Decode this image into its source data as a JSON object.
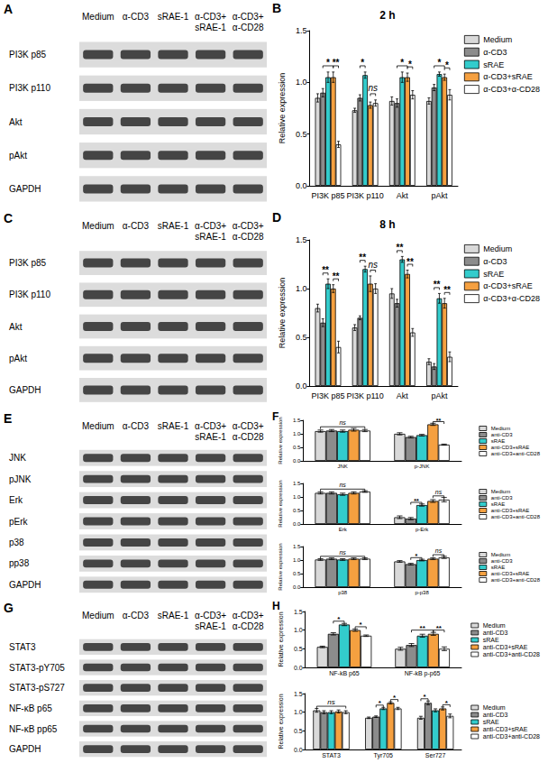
{
  "blots": [
    {
      "panel": "A",
      "lanes": [
        [
          "Medium"
        ],
        [
          "α-CD3"
        ],
        [
          "sRAE-1"
        ],
        [
          "α-CD3+",
          "sRAE-1"
        ],
        [
          "α-CD3+",
          "α-CD28"
        ]
      ],
      "rows": [
        "PI3K p85",
        "PI3K p110",
        "Akt",
        "pAkt",
        "GAPDH"
      ]
    },
    {
      "panel": "C",
      "lanes": [
        [
          "Medium"
        ],
        [
          "α-CD3"
        ],
        [
          "sRAE-1"
        ],
        [
          "α-CD3+",
          "sRAE-1"
        ],
        [
          "α-CD3+",
          "α-CD28"
        ]
      ],
      "rows": [
        "PI3K p85",
        "PI3K p110",
        "Akt",
        "pAkt",
        "GAPDH"
      ]
    },
    {
      "panel": "E",
      "lanes": [
        [
          "Medium"
        ],
        [
          "α-CD3"
        ],
        [
          "sRAE-1"
        ],
        [
          "α-CD3+",
          "sRAE-1"
        ],
        [
          "α-CD3+",
          "α-CD28"
        ]
      ],
      "rows": [
        "JNK",
        "pJNK",
        "Erk",
        "pErk",
        "p38",
        "pp38",
        "GAPDH"
      ]
    },
    {
      "panel": "G",
      "lanes": [
        [
          "Medium"
        ],
        [
          "α-CD3"
        ],
        [
          "sRAE-1"
        ],
        [
          "α-CD3+",
          "sRAE-1"
        ],
        [
          "α-CD3+",
          "α-CD28"
        ]
      ],
      "rows": [
        "STAT3",
        "STAT3-pY705",
        "STAT3-pS727",
        "NF-κB p65",
        "NF-κB pp65",
        "GAPDH"
      ]
    }
  ],
  "chart_data": [
    {
      "panel": "B",
      "type": "bar",
      "title": "2 h",
      "y_label": "Relative expression",
      "categories": [
        "PI3K p85",
        "PI3K p110",
        "Akt",
        "pAkt"
      ],
      "series": [
        {
          "name": "Medium",
          "color": "#d9d9d9",
          "values": [
            0.85,
            0.73,
            0.82,
            0.82
          ],
          "errors": [
            0.04,
            0.02,
            0.04,
            0.03
          ]
        },
        {
          "name": "α-CD3",
          "color": "#8c8c8c",
          "values": [
            0.9,
            0.85,
            0.8,
            0.95
          ],
          "errors": [
            0.04,
            0.03,
            0.04,
            0.03
          ]
        },
        {
          "name": "sRAE",
          "color": "#33cccc",
          "values": [
            1.05,
            1.07,
            1.05,
            1.08
          ],
          "errors": [
            0.05,
            0.03,
            0.05,
            0.02
          ]
        },
        {
          "name": "α-CD3+sRAE",
          "color": "#f5a040",
          "values": [
            1.05,
            0.78,
            1.05,
            1.05
          ],
          "errors": [
            0.05,
            0.03,
            0.04,
            0.03
          ]
        },
        {
          "name": "α-CD3+α-CD28",
          "color": "#ffffff",
          "values": [
            0.4,
            0.8,
            0.88,
            0.88
          ],
          "errors": [
            0.03,
            0.03,
            0.04,
            0.05
          ]
        }
      ],
      "ylim": [
        0,
        1.5
      ],
      "yticks": [
        {
          "value": 0,
          "label": "0.0"
        },
        0.5,
        {
          "value": 1,
          "label": "1.0"
        },
        1.5
      ],
      "grid": false,
      "legend": "right",
      "annotations": [
        {
          "category": "PI3K p85",
          "from": "α-CD3",
          "to": "α-CD3+sRAE",
          "text": "*"
        },
        {
          "category": "PI3K p85",
          "from": "α-CD3+sRAE",
          "to": "α-CD3+α-CD28",
          "text": "**"
        },
        {
          "category": "PI3K p110",
          "from": "α-CD3",
          "to": "sRAE",
          "text": "*"
        },
        {
          "category": "PI3K p110",
          "from": "α-CD3+sRAE",
          "to": "α-CD3+α-CD28",
          "text": "ns"
        },
        {
          "category": "Akt",
          "from": "α-CD3",
          "to": "α-CD3+sRAE",
          "text": "*"
        },
        {
          "category": "Akt",
          "from": "α-CD3+sRAE",
          "to": "α-CD3+α-CD28",
          "text": "*"
        },
        {
          "category": "pAkt",
          "from": "α-CD3",
          "to": "α-CD3+sRAE",
          "text": "*"
        },
        {
          "category": "pAkt",
          "from": "α-CD3+sRAE",
          "to": "α-CD3+α-CD28",
          "text": "*"
        }
      ]
    },
    {
      "panel": "D",
      "type": "bar",
      "title": "8 h",
      "y_label": "Relative expression",
      "categories": [
        "PI3K p85",
        "PI3K p110",
        "Akt",
        "pAkt"
      ],
      "series": [
        {
          "name": "Medium",
          "color": "#d9d9d9",
          "values": [
            0.8,
            0.6,
            0.95,
            0.25
          ],
          "errors": [
            0.04,
            0.03,
            0.05,
            0.03
          ]
        },
        {
          "name": "α-CD3",
          "color": "#8c8c8c",
          "values": [
            0.65,
            0.7,
            0.85,
            0.2
          ],
          "errors": [
            0.04,
            0.02,
            0.04,
            0.03
          ]
        },
        {
          "name": "sRAE",
          "color": "#33cccc",
          "values": [
            1.05,
            1.2,
            1.3,
            0.9
          ],
          "errors": [
            0.05,
            0.03,
            0.03,
            0.05
          ]
        },
        {
          "name": "α-CD3+sRAE",
          "color": "#f5a040",
          "values": [
            1.0,
            1.05,
            1.15,
            0.85
          ],
          "errors": [
            0.04,
            0.08,
            0.04,
            0.05
          ]
        },
        {
          "name": "α-CD3+α-CD28",
          "color": "#ffffff",
          "values": [
            0.4,
            1.0,
            0.55,
            0.3
          ],
          "errors": [
            0.06,
            0.05,
            0.04,
            0.05
          ]
        }
      ],
      "ylim": [
        0,
        1.5
      ],
      "yticks": [
        {
          "value": 0,
          "label": "0.0"
        },
        0.5,
        {
          "value": 1,
          "label": "1.0"
        },
        1.5
      ],
      "grid": false,
      "legend": "right",
      "annotations": [
        {
          "category": "PI3K p85",
          "from": "α-CD3",
          "to": "sRAE",
          "text": "**"
        },
        {
          "category": "PI3K p85",
          "from": "α-CD3+sRAE",
          "to": "α-CD3+α-CD28",
          "text": "**"
        },
        {
          "category": "PI3K p110",
          "from": "α-CD3",
          "to": "sRAE",
          "text": "**"
        },
        {
          "category": "PI3K p110",
          "from": "α-CD3+sRAE",
          "to": "α-CD3+α-CD28",
          "text": "ns"
        },
        {
          "category": "Akt",
          "from": "α-CD3",
          "to": "sRAE",
          "text": "**"
        },
        {
          "category": "Akt",
          "from": "α-CD3+sRAE",
          "to": "α-CD3+α-CD28",
          "text": "**"
        },
        {
          "category": "pAkt",
          "from": "α-CD3",
          "to": "sRAE",
          "text": "**"
        },
        {
          "category": "pAkt",
          "from": "α-CD3+sRAE",
          "to": "α-CD3+α-CD28",
          "text": "**"
        }
      ]
    },
    {
      "panel": "F",
      "type": "bar",
      "y_label": "Relative expression",
      "categories": [
        "JNK",
        "p-JNK"
      ],
      "series": [
        {
          "name": "Medium",
          "color": "#d9d9d9",
          "values": [
            1.1,
            1.0
          ],
          "errors": [
            0.04,
            0.04
          ]
        },
        {
          "name": "anti-CD3",
          "color": "#8c8c8c",
          "values": [
            1.12,
            0.88
          ],
          "errors": [
            0.04,
            0.03
          ]
        },
        {
          "name": "sRAE",
          "color": "#33cccc",
          "values": [
            1.1,
            0.95
          ],
          "errors": [
            0.04,
            0.03
          ]
        },
        {
          "name": "anti-CD3+sRAE",
          "color": "#f5a040",
          "values": [
            1.15,
            1.35
          ],
          "errors": [
            0.05,
            0.04
          ]
        },
        {
          "name": "anti-CD3+anti-CD28",
          "color": "#ffffff",
          "values": [
            1.12,
            0.6
          ],
          "errors": [
            0.04,
            0.02
          ]
        }
      ],
      "ylim": [
        0,
        1.5
      ],
      "yticks": [
        {
          "value": 0,
          "label": "0.0"
        },
        0.5,
        {
          "value": 1,
          "label": "1.0"
        },
        1.5
      ],
      "grid": false,
      "legend": "right",
      "annotations": [
        {
          "category": "JNK",
          "from": "Medium",
          "to": "anti-CD3+anti-CD28",
          "text": "ns"
        },
        {
          "category": "p-JNK",
          "from": "anti-CD3+sRAE",
          "to": "anti-CD3+anti-CD28",
          "text": "**"
        }
      ]
    },
    {
      "type": "bar",
      "y_label": "Relative expression",
      "categories": [
        "Erk",
        "p-Erk"
      ],
      "series": [
        {
          "name": "Medium",
          "color": "#d9d9d9",
          "values": [
            1.15,
            0.25
          ],
          "errors": [
            0.04,
            0.05
          ]
        },
        {
          "name": "anti-CD3",
          "color": "#8c8c8c",
          "values": [
            1.15,
            0.2
          ],
          "errors": [
            0.04,
            0.04
          ]
        },
        {
          "name": "sRAE",
          "color": "#33cccc",
          "values": [
            1.1,
            0.7
          ],
          "errors": [
            0.04,
            0.04
          ]
        },
        {
          "name": "anti-CD3+sRAE",
          "color": "#f5a040",
          "values": [
            1.15,
            0.85
          ],
          "errors": [
            0.04,
            0.05
          ]
        },
        {
          "name": "anti-CD3+anti-CD28",
          "color": "#ffffff",
          "values": [
            1.2,
            0.9
          ],
          "errors": [
            0.03,
            0.08
          ]
        }
      ],
      "ylim": [
        0,
        1.5
      ],
      "yticks": [
        {
          "value": 0,
          "label": "0.0"
        },
        0.5,
        {
          "value": 1,
          "label": "1.0"
        },
        1.5
      ],
      "grid": false,
      "legend": "right",
      "annotations": [
        {
          "category": "Erk",
          "from": "Medium",
          "to": "anti-CD3+anti-CD28",
          "text": "ns"
        },
        {
          "category": "p-Erk",
          "from": "anti-CD3",
          "to": "sRAE",
          "text": "**"
        },
        {
          "category": "p-Erk",
          "from": "anti-CD3+sRAE",
          "to": "anti-CD3+anti-CD28",
          "text": "ns"
        }
      ]
    },
    {
      "type": "bar",
      "y_label": "Relative expression",
      "categories": [
        "p38",
        "p-p38"
      ],
      "series": [
        {
          "name": "Medium",
          "color": "#d9d9d9",
          "values": [
            1.02,
            0.95
          ],
          "errors": [
            0.03,
            0.03
          ]
        },
        {
          "name": "anti-CD3",
          "color": "#8c8c8c",
          "values": [
            1.05,
            0.85
          ],
          "errors": [
            0.03,
            0.03
          ]
        },
        {
          "name": "sRAE",
          "color": "#33cccc",
          "values": [
            1.02,
            1.0
          ],
          "errors": [
            0.03,
            0.03
          ]
        },
        {
          "name": "anti-CD3+sRAE",
          "color": "#f5a040",
          "values": [
            1.05,
            1.05
          ],
          "errors": [
            0.03,
            0.03
          ]
        },
        {
          "name": "anti-CD3+anti-CD28",
          "color": "#ffffff",
          "values": [
            1.05,
            1.1
          ],
          "errors": [
            0.03,
            0.04
          ]
        }
      ],
      "ylim": [
        0,
        1.5
      ],
      "yticks": [
        {
          "value": 0,
          "label": "0.0"
        },
        0.5,
        {
          "value": 1,
          "label": "1.0"
        },
        1.5
      ],
      "grid": false,
      "legend": "right",
      "annotations": [
        {
          "category": "p38",
          "from": "Medium",
          "to": "anti-CD3+anti-CD28",
          "text": "ns"
        },
        {
          "category": "p-p38",
          "from": "anti-CD3",
          "to": "sRAE",
          "text": "*"
        },
        {
          "category": "p-p38",
          "from": "anti-CD3+sRAE",
          "to": "anti-CD3+anti-CD28",
          "text": "ns"
        }
      ]
    },
    {
      "panel": "H",
      "type": "bar",
      "y_label": "Relative expression",
      "categories": [
        "NF-kB p65",
        "NF-kB p-p65"
      ],
      "series": [
        {
          "name": "Medium",
          "color": "#d9d9d9",
          "values": [
            0.55,
            0.5
          ],
          "errors": [
            0.02,
            0.04
          ]
        },
        {
          "name": "anti-CD3",
          "color": "#8c8c8c",
          "values": [
            0.9,
            0.6
          ],
          "errors": [
            0.03,
            0.04
          ]
        },
        {
          "name": "sRAE",
          "color": "#33cccc",
          "values": [
            1.15,
            0.85
          ],
          "errors": [
            0.03,
            0.04
          ]
        },
        {
          "name": "anti-CD3+sRAE",
          "color": "#f5a040",
          "values": [
            1.0,
            0.9
          ],
          "errors": [
            0.03,
            0.04
          ]
        },
        {
          "name": "anti-CD3+anti-CD28",
          "color": "#ffffff",
          "values": [
            0.85,
            0.5
          ],
          "errors": [
            0.02,
            0.05
          ]
        }
      ],
      "ylim": [
        0,
        1.5
      ],
      "yticks": [
        {
          "value": 0,
          "label": "0.0"
        },
        0.5,
        {
          "value": 1,
          "label": "1.0"
        },
        1.5
      ],
      "grid": false,
      "legend": "right",
      "annotations": [
        {
          "category": "NF-kB p65",
          "from": "anti-CD3",
          "to": "sRAE",
          "text": "*"
        },
        {
          "category": "NF-kB p65",
          "from": "anti-CD3+sRAE",
          "to": "anti-CD3+anti-CD28",
          "text": "*"
        },
        {
          "category": "NF-kB p-p65",
          "from": "anti-CD3",
          "to": "anti-CD3+sRAE",
          "text": "**"
        },
        {
          "category": "NF-kB p-p65",
          "from": "anti-CD3+sRAE",
          "to": "anti-CD3+anti-CD28",
          "text": "**"
        }
      ]
    },
    {
      "type": "bar",
      "y_label": "Relative expression",
      "categories": [
        "STAT3",
        "Tyr705",
        "Ser727"
      ],
      "series": [
        {
          "name": "Medium",
          "color": "#d9d9d9",
          "values": [
            1.05,
            0.85,
            0.85
          ],
          "errors": [
            0.05,
            0.02,
            0.04
          ]
        },
        {
          "name": "anti-CD3",
          "color": "#8c8c8c",
          "values": [
            1.0,
            0.88,
            1.25
          ],
          "errors": [
            0.04,
            0.02,
            0.05
          ]
        },
        {
          "name": "sRAE",
          "color": "#33cccc",
          "values": [
            1.0,
            1.1,
            1.05
          ],
          "errors": [
            0.04,
            0.03,
            0.04
          ]
        },
        {
          "name": "anti-CD3+sRAE",
          "color": "#f5a040",
          "values": [
            1.02,
            1.25,
            1.1
          ],
          "errors": [
            0.04,
            0.03,
            0.04
          ]
        },
        {
          "name": "anti-CD3+anti-CD28",
          "color": "#ffffff",
          "values": [
            1.0,
            1.1,
            0.9
          ],
          "errors": [
            0.04,
            0.03,
            0.05
          ]
        }
      ],
      "ylim": [
        0,
        1.5
      ],
      "yticks": [
        {
          "value": 0,
          "label": "0.0"
        },
        0.5,
        {
          "value": 1,
          "label": "1.0"
        },
        1.5
      ],
      "grid": false,
      "legend": "right",
      "annotations": [
        {
          "category": "STAT3",
          "from": "Medium",
          "to": "anti-CD3+anti-CD28",
          "text": "ns"
        },
        {
          "category": "Tyr705",
          "from": "anti-CD3",
          "to": "sRAE",
          "text": "*"
        },
        {
          "category": "Tyr705",
          "from": "anti-CD3+sRAE",
          "to": "anti-CD3+anti-CD28",
          "text": "*"
        },
        {
          "category": "Ser727",
          "from": "Medium",
          "to": "anti-CD3",
          "text": "*"
        },
        {
          "category": "Ser727",
          "from": "anti-CD3+sRAE",
          "to": "anti-CD3+anti-CD28",
          "text": "*"
        }
      ]
    }
  ]
}
